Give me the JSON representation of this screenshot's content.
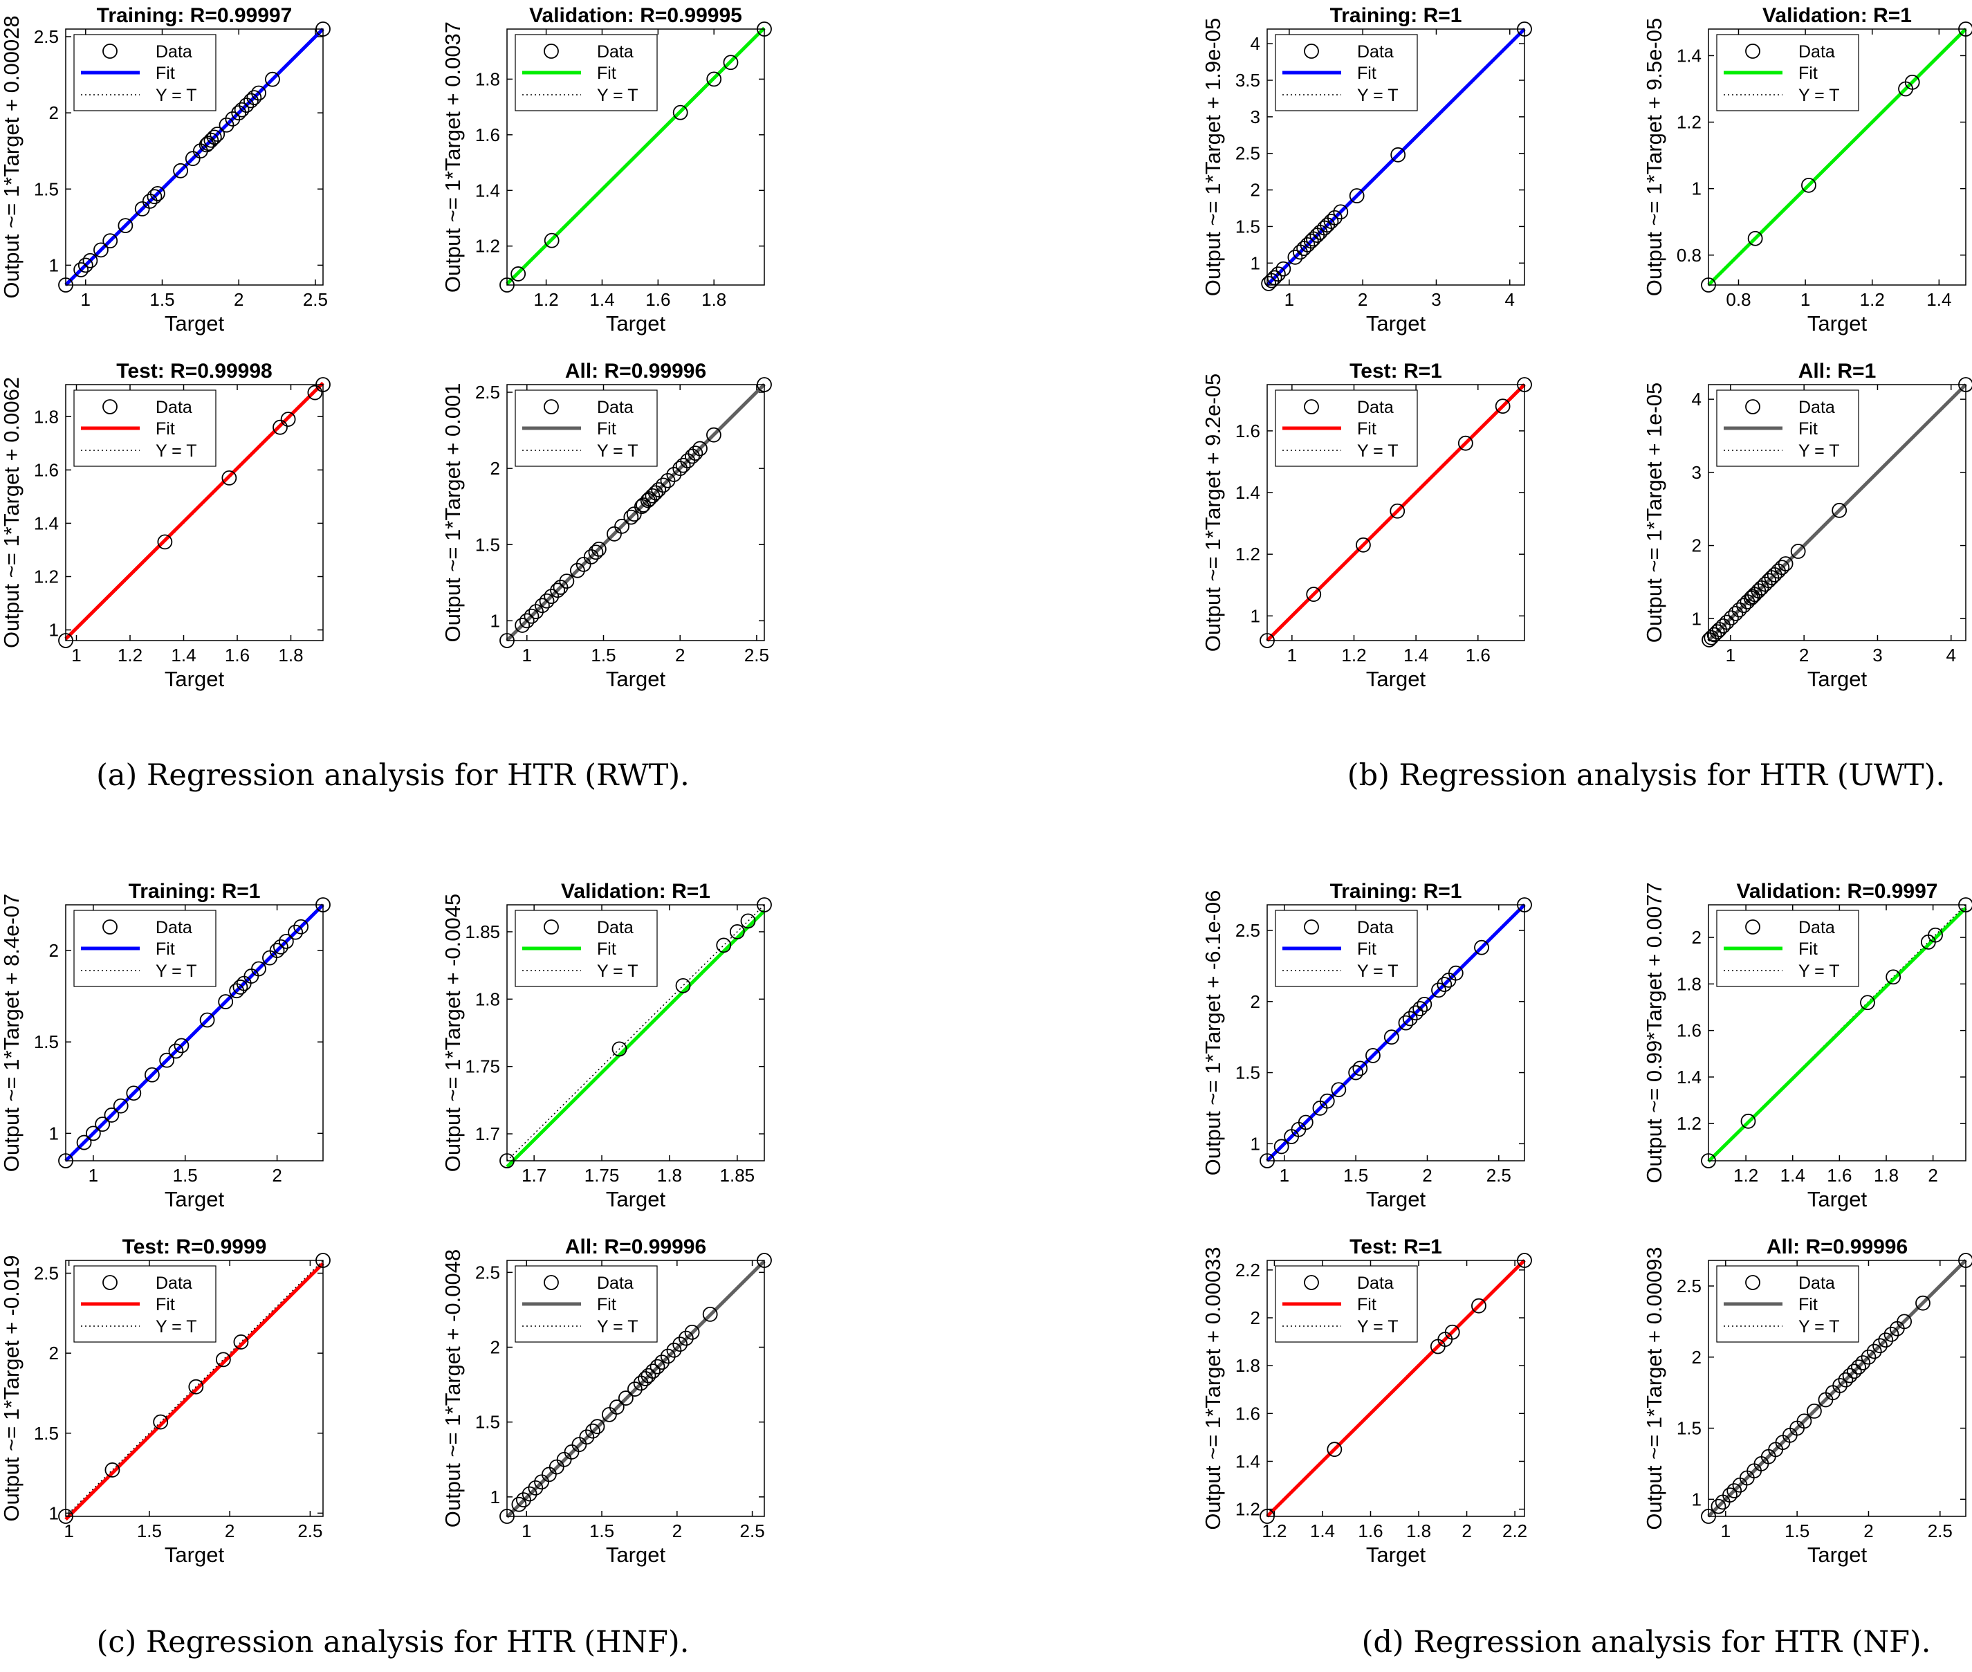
{
  "colors": {
    "training": "#0000ff",
    "validation": "#00ee00",
    "test": "#ff0000",
    "all": "#606060",
    "marker": "#000000"
  },
  "legend": {
    "data": "Data",
    "fit": "Fit",
    "ident": "Y = T"
  },
  "captions": [
    "(a) Regression analysis for HTR (RWT).",
    "(b) Regression analysis for HTR (UWT).",
    "(c) Regression analysis for HTR (HNF).",
    "(d) Regression analysis for HTR (NF)."
  ],
  "chart_data": [
    {
      "type": "scatter",
      "title": "Training: R=0.99997",
      "xlabel": "Target",
      "ylabel": "Output ~= 1*Target + 0.00028",
      "series": "training",
      "xlim": [
        0.87,
        2.55
      ],
      "ylim": [
        0.87,
        2.55
      ],
      "xticks": [
        1,
        1.5,
        2,
        2.5
      ],
      "yticks": [
        1,
        1.5,
        2,
        2.5
      ],
      "xtick_labels": [
        "1",
        "1.5",
        "2",
        "2.5"
      ],
      "ytick_labels": [
        "1",
        "1.5",
        "2",
        "2.5"
      ],
      "fit": [
        1,
        0.00028
      ],
      "x": [
        0.87,
        0.97,
        1.0,
        1.03,
        1.1,
        1.16,
        1.26,
        1.37,
        1.42,
        1.45,
        1.47,
        1.62,
        1.7,
        1.75,
        1.79,
        1.8,
        1.82,
        1.84,
        1.86,
        1.92,
        1.96,
        2.0,
        2.02,
        2.05,
        2.08,
        2.1,
        2.13,
        2.22,
        2.55
      ]
    },
    {
      "type": "scatter",
      "title": "Validation: R=0.99995",
      "xlabel": "Target",
      "ylabel": "Output ~= 1*Target + 0.0037",
      "series": "validation",
      "xlim": [
        1.06,
        1.98
      ],
      "ylim": [
        1.06,
        1.98
      ],
      "xticks": [
        1.2,
        1.4,
        1.6,
        1.8
      ],
      "yticks": [
        1.2,
        1.4,
        1.6,
        1.8
      ],
      "xtick_labels": [
        "1.2",
        "1.4",
        "1.6",
        "1.8"
      ],
      "ytick_labels": [
        "1.2",
        "1.4",
        "1.6",
        "1.8"
      ],
      "fit": [
        1,
        0.0037
      ],
      "x": [
        1.06,
        1.1,
        1.22,
        1.68,
        1.8,
        1.86,
        1.98
      ]
    },
    {
      "type": "scatter",
      "title": "Test: R=0.99998",
      "xlabel": "Target",
      "ylabel": "Output ~= 1*Target + 0.0062",
      "series": "test",
      "xlim": [
        0.96,
        1.92
      ],
      "ylim": [
        0.96,
        1.92
      ],
      "xticks": [
        1,
        1.2,
        1.4,
        1.6,
        1.8
      ],
      "yticks": [
        1,
        1.2,
        1.4,
        1.6,
        1.8
      ],
      "xtick_labels": [
        "1",
        "1.2",
        "1.4",
        "1.6",
        "1.8"
      ],
      "ytick_labels": [
        "1",
        "1.2",
        "1.4",
        "1.6",
        "1.8"
      ],
      "fit": [
        1,
        0.0062
      ],
      "x": [
        0.96,
        1.33,
        1.57,
        1.76,
        1.79,
        1.89,
        1.92
      ]
    },
    {
      "type": "scatter",
      "title": "All: R=0.99996",
      "xlabel": "Target",
      "ylabel": "Output ~= 1*Target + 0.001",
      "series": "all",
      "xlim": [
        0.87,
        2.55
      ],
      "ylim": [
        0.87,
        2.55
      ],
      "xticks": [
        1,
        1.5,
        2,
        2.5
      ],
      "yticks": [
        1,
        1.5,
        2,
        2.5
      ],
      "xtick_labels": [
        "1",
        "1.5",
        "2",
        "2.5"
      ],
      "ytick_labels": [
        "1",
        "1.5",
        "2",
        "2.5"
      ],
      "fit": [
        1,
        0.001
      ],
      "x": [
        0.87,
        0.97,
        1.0,
        1.03,
        1.06,
        1.1,
        1.13,
        1.16,
        1.2,
        1.22,
        1.26,
        1.33,
        1.37,
        1.42,
        1.45,
        1.47,
        1.57,
        1.62,
        1.68,
        1.7,
        1.75,
        1.76,
        1.79,
        1.8,
        1.82,
        1.84,
        1.86,
        1.89,
        1.92,
        1.96,
        2.0,
        2.02,
        2.05,
        2.08,
        2.1,
        2.13,
        2.22,
        2.55
      ]
    },
    {
      "type": "scatter",
      "title": "Training: R=1",
      "xlabel": "Target",
      "ylabel": "Output ~= 1*Target + 1.9e-05",
      "series": "training",
      "xlim": [
        0.7,
        4.2
      ],
      "ylim": [
        0.7,
        4.2
      ],
      "xticks": [
        1,
        2,
        3,
        4
      ],
      "yticks": [
        1,
        1.5,
        2,
        2.5,
        3,
        3.5,
        4
      ],
      "xtick_labels": [
        "1",
        "2",
        "3",
        "4"
      ],
      "ytick_labels": [
        "1",
        "1.5",
        "2",
        "2.5",
        "3",
        "3.5",
        "4"
      ],
      "fit": [
        1,
        1.9e-05
      ],
      "x": [
        0.72,
        0.76,
        0.8,
        0.85,
        0.92,
        1.08,
        1.15,
        1.2,
        1.25,
        1.3,
        1.33,
        1.38,
        1.42,
        1.48,
        1.52,
        1.57,
        1.62,
        1.7,
        1.92,
        2.48,
        4.2
      ]
    },
    {
      "type": "scatter",
      "title": "Validation: R=1",
      "xlabel": "Target",
      "ylabel": "Output ~= 1*Target + 9.5e-05",
      "series": "validation",
      "xlim": [
        0.71,
        1.48
      ],
      "ylim": [
        0.71,
        1.48
      ],
      "xticks": [
        0.8,
        1,
        1.2,
        1.4
      ],
      "yticks": [
        0.8,
        1,
        1.2,
        1.4
      ],
      "xtick_labels": [
        "0.8",
        "1",
        "1.2",
        "1.4"
      ],
      "ytick_labels": [
        "0.8",
        "1",
        "1.2",
        "1.4"
      ],
      "fit": [
        1,
        9.5e-05
      ],
      "x": [
        0.71,
        0.85,
        1.01,
        1.3,
        1.32,
        1.48
      ]
    },
    {
      "type": "scatter",
      "title": "Test: R=1",
      "xlabel": "Target",
      "ylabel": "Output ~= 1*Target + 9.2e-05",
      "series": "test",
      "xlim": [
        0.92,
        1.75
      ],
      "ylim": [
        0.92,
        1.75
      ],
      "xticks": [
        1,
        1.2,
        1.4,
        1.6
      ],
      "yticks": [
        1,
        1.2,
        1.4,
        1.6
      ],
      "xtick_labels": [
        "1",
        "1.2",
        "1.4",
        "1.6"
      ],
      "ytick_labels": [
        "1",
        "1.2",
        "1.4",
        "1.6"
      ],
      "fit": [
        1,
        9.2e-05
      ],
      "x": [
        0.92,
        1.07,
        1.23,
        1.34,
        1.56,
        1.68,
        1.75
      ]
    },
    {
      "type": "scatter",
      "title": "All: R=1",
      "xlabel": "Target",
      "ylabel": "Output ~= 1*Target + 1e-05",
      "series": "all",
      "xlim": [
        0.7,
        4.2
      ],
      "ylim": [
        0.7,
        4.2
      ],
      "xticks": [
        1,
        2,
        3,
        4
      ],
      "yticks": [
        1,
        2,
        3,
        4
      ],
      "xtick_labels": [
        "1",
        "2",
        "3",
        "4"
      ],
      "ytick_labels": [
        "1",
        "2",
        "3",
        "4"
      ],
      "fit": [
        1,
        1e-05
      ],
      "x": [
        0.71,
        0.74,
        0.78,
        0.82,
        0.85,
        0.9,
        0.95,
        1.01,
        1.07,
        1.12,
        1.18,
        1.23,
        1.28,
        1.3,
        1.33,
        1.38,
        1.42,
        1.47,
        1.52,
        1.56,
        1.6,
        1.65,
        1.7,
        1.75,
        1.92,
        2.48,
        4.2
      ]
    },
    {
      "type": "scatter",
      "title": "Training: R=1",
      "xlabel": "Target",
      "ylabel": "Output ~= 1*Target + 8.4e-07",
      "series": "training",
      "xlim": [
        0.85,
        2.25
      ],
      "ylim": [
        0.85,
        2.25
      ],
      "xticks": [
        1,
        1.5,
        2
      ],
      "yticks": [
        1,
        1.5,
        2
      ],
      "xtick_labels": [
        "1",
        "1.5",
        "2"
      ],
      "ytick_labels": [
        "1",
        "1.5",
        "2"
      ],
      "fit": [
        1,
        8.4e-07
      ],
      "x": [
        0.85,
        0.95,
        1.0,
        1.05,
        1.1,
        1.15,
        1.22,
        1.32,
        1.4,
        1.45,
        1.48,
        1.62,
        1.72,
        1.78,
        1.8,
        1.82,
        1.86,
        1.9,
        1.96,
        2.0,
        2.02,
        2.05,
        2.1,
        2.13,
        2.25
      ]
    },
    {
      "type": "scatter",
      "title": "Validation: R=1",
      "xlabel": "Target",
      "ylabel": "Output ~= 1*Target + -0.0045",
      "series": "validation",
      "xlim": [
        1.68,
        1.87
      ],
      "ylim": [
        1.68,
        1.87
      ],
      "xticks": [
        1.7,
        1.75,
        1.8,
        1.85
      ],
      "yticks": [
        1.7,
        1.75,
        1.8,
        1.85
      ],
      "xtick_labels": [
        "1.7",
        "1.75",
        "1.8",
        "1.85"
      ],
      "ytick_labels": [
        "1.7",
        "1.75",
        "1.8",
        "1.85"
      ],
      "fit": [
        1,
        -0.0045
      ],
      "x": [
        1.68,
        1.763,
        1.81,
        1.84,
        1.85,
        1.858,
        1.87
      ]
    },
    {
      "type": "scatter",
      "title": "Test: R=0.9999",
      "xlabel": "Target",
      "ylabel": "Output ~= 1*Target + -0.019",
      "series": "test",
      "xlim": [
        0.98,
        2.58
      ],
      "ylim": [
        0.98,
        2.58
      ],
      "xticks": [
        1,
        1.5,
        2,
        2.5
      ],
      "yticks": [
        1,
        1.5,
        2,
        2.5
      ],
      "xtick_labels": [
        "1",
        "1.5",
        "2",
        "2.5"
      ],
      "ytick_labels": [
        "1",
        "1.5",
        "2",
        "2.5"
      ],
      "fit": [
        1,
        -0.019
      ],
      "x": [
        0.98,
        1.27,
        1.57,
        1.79,
        1.96,
        2.07,
        2.58
      ]
    },
    {
      "type": "scatter",
      "title": "All: R=0.99996",
      "xlabel": "Target",
      "ylabel": "Output ~= 1*Target + -0.0048",
      "series": "all",
      "xlim": [
        0.87,
        2.58
      ],
      "ylim": [
        0.87,
        2.58
      ],
      "xticks": [
        1,
        1.5,
        2,
        2.5
      ],
      "yticks": [
        1,
        1.5,
        2,
        2.5
      ],
      "xtick_labels": [
        "1",
        "1.5",
        "2",
        "2.5"
      ],
      "ytick_labels": [
        "1",
        "1.5",
        "2",
        "2.5"
      ],
      "fit": [
        1,
        -0.0048
      ],
      "x": [
        0.87,
        0.95,
        0.98,
        1.02,
        1.06,
        1.1,
        1.15,
        1.2,
        1.25,
        1.3,
        1.35,
        1.4,
        1.44,
        1.47,
        1.55,
        1.6,
        1.66,
        1.72,
        1.76,
        1.79,
        1.81,
        1.84,
        1.87,
        1.9,
        1.94,
        1.98,
        2.02,
        2.06,
        2.1,
        2.22,
        2.58
      ]
    },
    {
      "type": "scatter",
      "title": "Training: R=1",
      "xlabel": "Target",
      "ylabel": "Output ~= 1*Target + -6.1e-06",
      "series": "training",
      "xlim": [
        0.88,
        2.68
      ],
      "ylim": [
        0.88,
        2.68
      ],
      "xticks": [
        1,
        1.5,
        2,
        2.5
      ],
      "yticks": [
        1,
        1.5,
        2,
        2.5
      ],
      "xtick_labels": [
        "1",
        "1.5",
        "2",
        "2.5"
      ],
      "ytick_labels": [
        "1",
        "1.5",
        "2",
        "2.5"
      ],
      "fit": [
        1,
        -6.1e-06
      ],
      "x": [
        0.88,
        0.98,
        1.05,
        1.1,
        1.15,
        1.25,
        1.3,
        1.38,
        1.5,
        1.53,
        1.62,
        1.75,
        1.85,
        1.88,
        1.92,
        1.95,
        1.98,
        2.08,
        2.12,
        2.15,
        2.2,
        2.38,
        2.68
      ]
    },
    {
      "type": "scatter",
      "title": "Validation: R=0.9997",
      "xlabel": "Target",
      "ylabel": "Output ~= 0.99*Target + 0.0077",
      "series": "validation",
      "xlim": [
        1.04,
        2.14
      ],
      "ylim": [
        1.04,
        2.14
      ],
      "xticks": [
        1.2,
        1.4,
        1.6,
        1.8,
        2
      ],
      "yticks": [
        1.2,
        1.4,
        1.6,
        1.8,
        2
      ],
      "xtick_labels": [
        "1.2",
        "1.4",
        "1.6",
        "1.8",
        "2"
      ],
      "ytick_labels": [
        "1.2",
        "1.4",
        "1.6",
        "1.8",
        "2"
      ],
      "fit": [
        0.99,
        0.0077
      ],
      "x": [
        1.04,
        1.21,
        1.72,
        1.83,
        1.98,
        2.01,
        2.14
      ]
    },
    {
      "type": "scatter",
      "title": "Test: R=1",
      "xlabel": "Target",
      "ylabel": "Output ~= 1*Target + 0.00033",
      "series": "test",
      "xlim": [
        1.17,
        2.24
      ],
      "ylim": [
        1.17,
        2.24
      ],
      "xticks": [
        1.2,
        1.4,
        1.6,
        1.8,
        2,
        2.2
      ],
      "yticks": [
        1.2,
        1.4,
        1.6,
        1.8,
        2,
        2.2
      ],
      "xtick_labels": [
        "1.2",
        "1.4",
        "1.6",
        "1.8",
        "2",
        "2.2"
      ],
      "ytick_labels": [
        "1.2",
        "1.4",
        "1.6",
        "1.8",
        "2",
        "2.2"
      ],
      "fit": [
        1,
        0.00033
      ],
      "x": [
        1.17,
        1.45,
        1.88,
        1.91,
        1.94,
        2.05,
        2.24
      ]
    },
    {
      "type": "scatter",
      "title": "All: R=0.99996",
      "xlabel": "Target",
      "ylabel": "Output ~= 1*Target + 0.00093",
      "series": "all",
      "xlim": [
        0.88,
        2.68
      ],
      "ylim": [
        0.88,
        2.68
      ],
      "xticks": [
        1,
        1.5,
        2,
        2.5
      ],
      "yticks": [
        1,
        1.5,
        2,
        2.5
      ],
      "xtick_labels": [
        "1",
        "1.5",
        "2",
        "2.5"
      ],
      "ytick_labels": [
        "1",
        "1.5",
        "2",
        "2.5"
      ],
      "fit": [
        1,
        0.00093
      ],
      "x": [
        0.88,
        0.95,
        0.98,
        1.03,
        1.06,
        1.1,
        1.15,
        1.2,
        1.25,
        1.3,
        1.35,
        1.4,
        1.45,
        1.5,
        1.55,
        1.62,
        1.7,
        1.75,
        1.8,
        1.84,
        1.87,
        1.9,
        1.93,
        1.96,
        2.0,
        2.04,
        2.08,
        2.12,
        2.16,
        2.2,
        2.25,
        2.38,
        2.68
      ]
    }
  ]
}
